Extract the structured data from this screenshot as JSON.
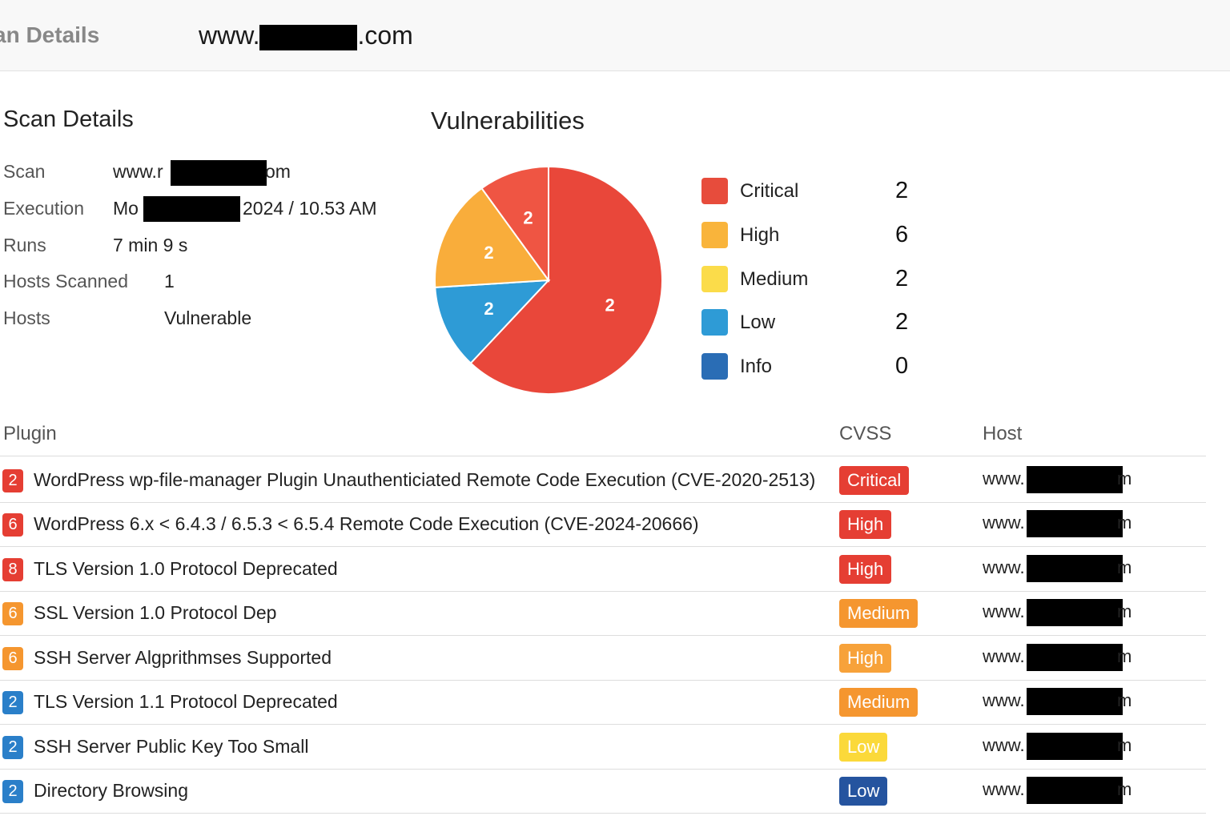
{
  "topbar": {
    "crumb": "an Details",
    "site_prefix": "www.",
    "site_suffix": ".com"
  },
  "scan_details": {
    "title": "Scan Details",
    "rows": [
      {
        "label": "Scan",
        "value_prefix": "www.r",
        "value_suffix": "om"
      },
      {
        "label": "Execution",
        "value_prefix": "Mo",
        "value_suffix": "2024 / 10.53 AM"
      },
      {
        "label": "Runs",
        "value": "7 min 9 s"
      },
      {
        "label": "Hosts Scanned",
        "value": "1"
      },
      {
        "label": "Hosts",
        "value": "Vulnerable"
      }
    ]
  },
  "vulnerabilities": {
    "title": "Vulnerabilities",
    "legend": [
      {
        "label": "Critical",
        "count": "2",
        "color": "#e74c3c"
      },
      {
        "label": "High",
        "count": "6",
        "color": "#f9b43b"
      },
      {
        "label": "Medium",
        "count": "2",
        "color": "#fbdc4a"
      },
      {
        "label": "Low",
        "count": "2",
        "color": "#2e9bd6"
      },
      {
        "label": "Info",
        "count": "0",
        "color": "#2a6db5"
      }
    ],
    "pie_slices": [
      {
        "label": "2",
        "value": 62,
        "color": "#e9473a"
      },
      {
        "label": "2",
        "value": 12,
        "color": "#2e9bd6"
      },
      {
        "label": "2",
        "value": 16,
        "color": "#f9ad3b"
      },
      {
        "label": "2",
        "value": 10,
        "color": "#ef5543"
      }
    ]
  },
  "table": {
    "headers": {
      "plugin": "Plugin",
      "cvss": "CVSS",
      "host": "Host"
    },
    "rows": [
      {
        "count": "2",
        "count_color": "#e53e33",
        "name": "WordPress wp-file-manager Plugin Unauthenticiated Remote Code Execution (CVE-2020-2513)",
        "severity": "Critical",
        "sev_color": "#e53e33",
        "host_prefix": "www.",
        "host_suffix": "m"
      },
      {
        "count": "6",
        "count_color": "#e53e33",
        "name": "WordPress 6.x < 6.4.3 / 6.5.3 < 6.5.4 Remote Code Execution (CVE-2024-20666)",
        "severity": "High",
        "sev_color": "#e53e33",
        "host_prefix": "www.",
        "host_suffix": "m"
      },
      {
        "count": "8",
        "count_color": "#e53e33",
        "name": "TLS Version 1.0 Protocol Deprecated",
        "severity": "High",
        "sev_color": "#e53e33",
        "host_prefix": "www.",
        "host_suffix": "m"
      },
      {
        "count": "6",
        "count_color": "#f5962f",
        "name": "SSL Version 1.0 Protocol Dep",
        "severity": "Medium",
        "sev_color": "#f5962f",
        "host_prefix": "www.",
        "host_suffix": "m"
      },
      {
        "count": "6",
        "count_color": "#f5962f",
        "name": "SSH Server Algprithmses Supported",
        "severity": "High",
        "sev_color": "#f7a23a",
        "host_prefix": "www.",
        "host_suffix": "m"
      },
      {
        "count": "2",
        "count_color": "#2a7fc9",
        "name": "TLS Version 1.1 Protocol Deprecated",
        "severity": "Medium",
        "sev_color": "#f5962f",
        "host_prefix": "www.",
        "host_suffix": "m"
      },
      {
        "count": "2",
        "count_color": "#2a7fc9",
        "name": "SSH Server Public Key Too Small",
        "severity": "Low",
        "sev_color": "#fbd93a",
        "host_prefix": "www.",
        "host_suffix": "m"
      },
      {
        "count": "2",
        "count_color": "#2a7fc9",
        "name": "Directory Browsing",
        "severity": "Low",
        "sev_color": "#25549f",
        "host_prefix": "www.",
        "host_suffix": "m"
      }
    ]
  }
}
